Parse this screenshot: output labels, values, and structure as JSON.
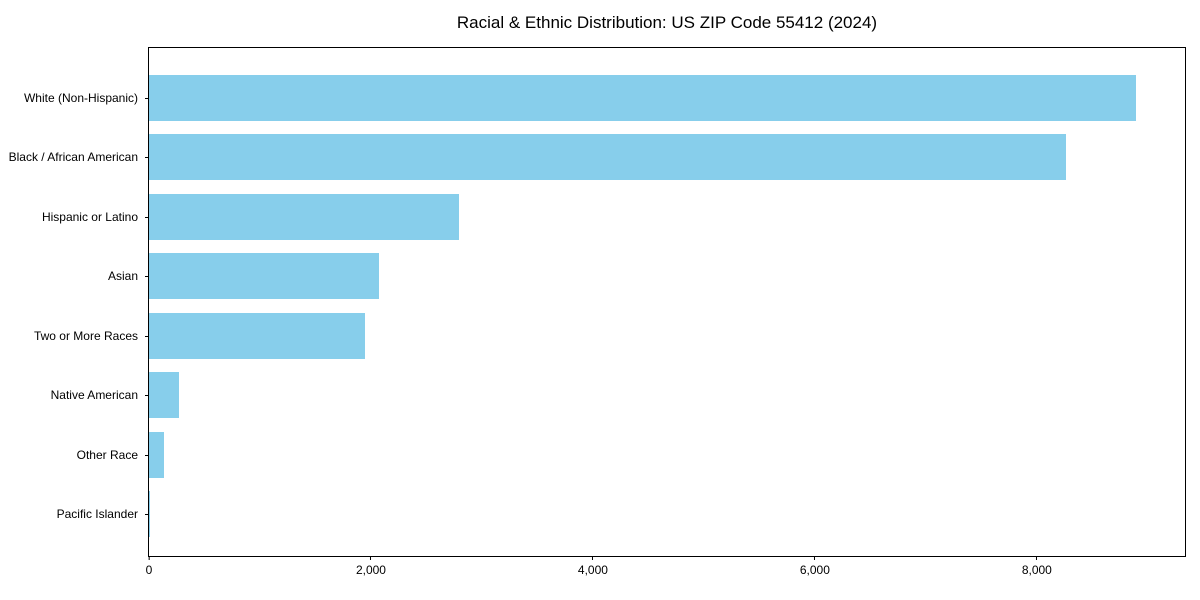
{
  "chart_data": {
    "type": "bar",
    "orientation": "horizontal",
    "title": "Racial & Ethnic Distribution: US ZIP Code 55412 (2024)",
    "categories": [
      "White (Non-Hispanic)",
      "Black / African American",
      "Hispanic or Latino",
      "Asian",
      "Two or More Races",
      "Native American",
      "Other Race",
      "Pacific Islander"
    ],
    "values": [
      8890,
      8260,
      2790,
      2070,
      1950,
      270,
      135,
      10
    ],
    "xlabel": "",
    "ylabel": "",
    "xlim": [
      0,
      9335
    ],
    "xticks": [
      0,
      2000,
      4000,
      6000,
      8000
    ],
    "xtick_labels": [
      "0",
      "2,000",
      "4,000",
      "6,000",
      "8,000"
    ],
    "bar_color": "#87CEEB",
    "background_color": "#ffffff",
    "axis_color": "#000000",
    "grid": false,
    "legend_position": "none"
  }
}
